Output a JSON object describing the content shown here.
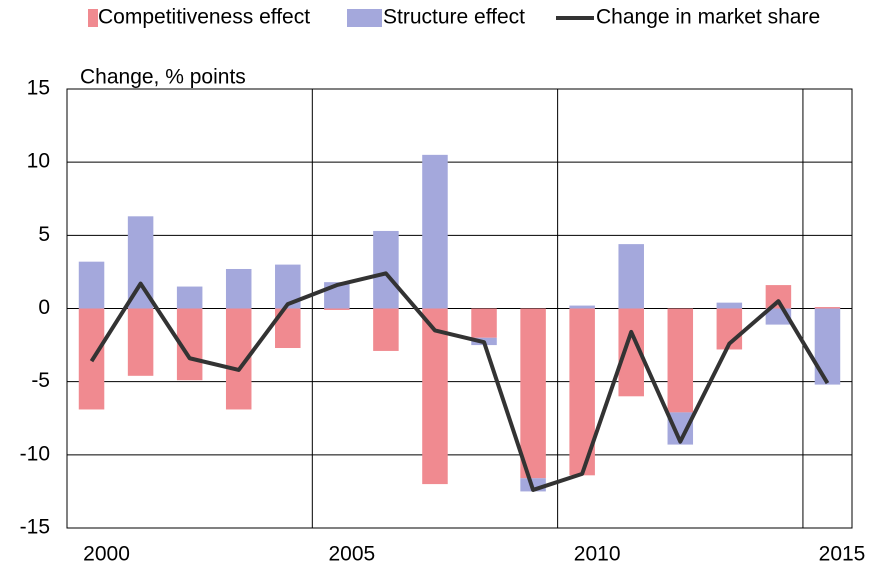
{
  "chart_data": {
    "type": "bar-line",
    "y_label": "Change, % points",
    "categories": [
      "2000",
      null,
      null,
      null,
      null,
      "2005",
      null,
      null,
      null,
      null,
      "2010",
      null,
      null,
      null,
      null,
      "2015"
    ],
    "series": [
      {
        "name": "Competitiveness effect",
        "type": "bar",
        "color": "#f08a90",
        "values": [
          -6.9,
          -4.6,
          -4.9,
          -6.9,
          -2.7,
          -0.1,
          -2.9,
          -12.0,
          -2.0,
          -11.6,
          -11.4,
          -6.0,
          -7.1,
          -2.8,
          1.6,
          0.1
        ]
      },
      {
        "name": "Structure effect",
        "type": "bar",
        "color": "#a4a8dc",
        "values": [
          3.2,
          6.3,
          1.5,
          2.7,
          3.0,
          1.8,
          5.3,
          10.5,
          -0.5,
          -0.9,
          0.2,
          4.4,
          -2.2,
          0.4,
          -1.1,
          -5.2
        ]
      },
      {
        "name": "Change in market share",
        "type": "line",
        "color": "#333333",
        "values": [
          -3.6,
          1.7,
          -3.4,
          -4.2,
          0.3,
          1.6,
          2.4,
          -1.5,
          -2.3,
          -12.4,
          -11.3,
          -1.6,
          -9.1,
          -2.4,
          0.5,
          -5.1
        ]
      }
    ],
    "ylim": [
      -15,
      15
    ],
    "yticks": [
      -15,
      -10,
      -5,
      0,
      5,
      10,
      15
    ],
    "grid": true
  }
}
